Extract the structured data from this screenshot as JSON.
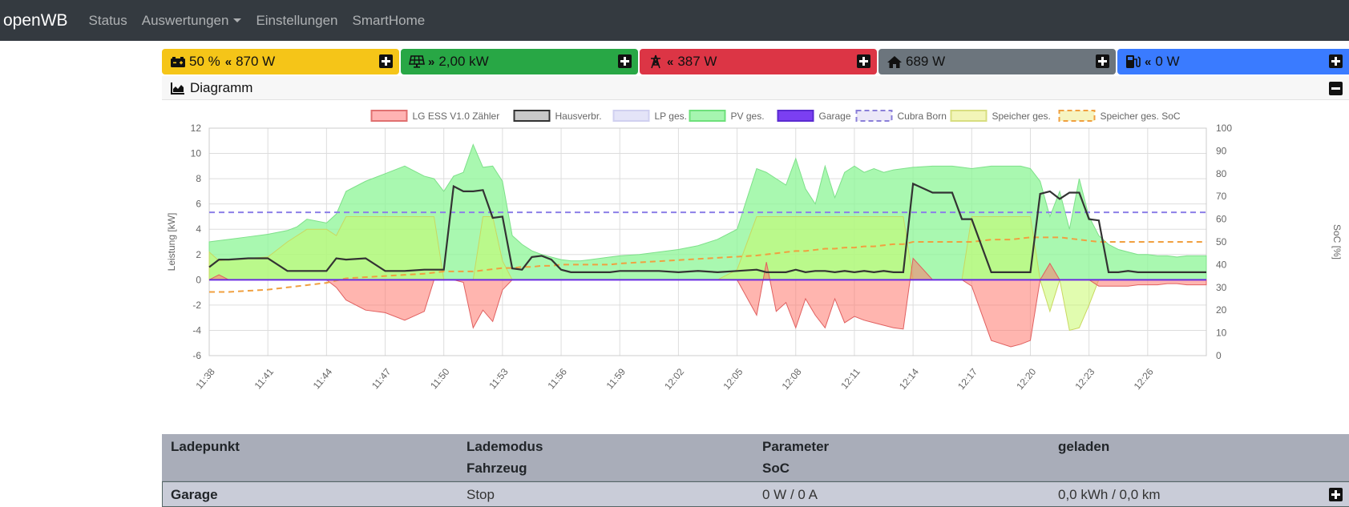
{
  "navbar": {
    "brand": "openWB",
    "items": [
      "Status",
      "Auswertungen",
      "Einstellungen",
      "SmartHome"
    ]
  },
  "tiles": [
    {
      "icon": "battery-icon",
      "arrows": "«",
      "prefix": "50 %",
      "value": "870 W",
      "color": "#f5c518"
    },
    {
      "icon": "solar-panel-icon",
      "arrows": "»",
      "prefix": "",
      "value": "2,00 kW",
      "color": "#28a745"
    },
    {
      "icon": "power-tower-icon",
      "arrows": "«",
      "prefix": "",
      "value": "387 W",
      "color": "#dc3545"
    },
    {
      "icon": "home-icon",
      "arrows": "",
      "prefix": "",
      "value": "689 W",
      "color": "#6c757d"
    },
    {
      "icon": "charging-station-icon",
      "arrows": "«",
      "prefix": "",
      "value": "0 W",
      "color": "#3a7bff"
    }
  ],
  "diagram": {
    "title": "Diagramm"
  },
  "chart_data": {
    "type": "area",
    "xlabel": "",
    "ylabel": "Leistung [kW]",
    "y2label": "SoC [%]",
    "ylim": [
      -6,
      12
    ],
    "y2lim": [
      0,
      100
    ],
    "yticks": [
      "12",
      "10",
      "8",
      "6",
      "4",
      "2",
      "0",
      "-2",
      "-4",
      "-6"
    ],
    "y2ticks": [
      "100",
      "90",
      "80",
      "70",
      "60",
      "50",
      "40",
      "30",
      "20",
      "10",
      "0"
    ],
    "xticks": [
      "11:38",
      "11:41",
      "11:44",
      "11:47",
      "11:50",
      "11:53",
      "11:56",
      "11:59",
      "12:02",
      "12:05",
      "12:08",
      "12:11",
      "12:14",
      "12:17",
      "12:20",
      "12:23",
      "12:26"
    ],
    "legend_position": "top",
    "legend": [
      {
        "label": "LG ESS V1.0 Zähler",
        "fill": "#ffb3b3",
        "stroke": "#e07070",
        "dashed": false
      },
      {
        "label": "Hausverbr.",
        "fill": "#c8c8c8",
        "stroke": "#333333",
        "dashed": false
      },
      {
        "label": "LP ges.",
        "fill": "#e4e4f8",
        "stroke": "#d0d0f0",
        "dashed": false
      },
      {
        "label": "PV ges.",
        "fill": "#a6f5b0",
        "stroke": "#6de07a",
        "dashed": false
      },
      {
        "label": "Garage",
        "fill": "#7b3ff2",
        "stroke": "#5a2bd0",
        "dashed": false
      },
      {
        "label": "Cubra Born",
        "fill": "#ece8f8",
        "stroke": "#8a7fd8",
        "dashed": true
      },
      {
        "label": "Speicher ges.",
        "fill": "#f2f5b8",
        "stroke": "#d8de80",
        "dashed": false
      },
      {
        "label": "Speicher ges. SoC",
        "fill": "#f6f4c0",
        "stroke": "#f0a040",
        "dashed": true
      }
    ],
    "x_minutes": [
      0,
      0.5,
      1,
      2,
      3,
      4,
      4.5,
      5,
      6,
      6.5,
      7,
      8,
      9,
      10,
      11,
      11.5,
      12,
      12.5,
      13,
      13.5,
      14,
      14.5,
      15,
      15.5,
      16,
      16.5,
      17,
      17.5,
      18,
      18.5,
      19,
      19.5,
      20,
      20.5,
      21,
      22,
      23,
      24,
      25,
      26,
      27,
      28,
      28.5,
      29,
      29.5,
      30,
      30.5,
      31,
      31.5,
      32,
      32.5,
      33,
      33.5,
      34,
      34.5,
      35,
      35.5,
      36,
      37,
      38,
      38.5,
      39,
      40,
      41,
      41.5,
      42,
      42.5,
      43,
      43.5,
      44,
      44.5,
      45,
      45.5,
      46,
      46.5,
      47,
      47.5,
      48,
      48.5,
      49,
      49.5,
      50,
      51
    ],
    "series": [
      {
        "name": "PV ges.",
        "unit": "kW",
        "values": [
          3.0,
          3.1,
          3.2,
          3.4,
          3.6,
          3.9,
          4.2,
          4.8,
          4.5,
          5.2,
          7.0,
          7.8,
          8.4,
          9.0,
          8.2,
          8.0,
          7.0,
          8.2,
          8.5,
          10.7,
          8.9,
          9.0,
          7.8,
          3.5,
          2.8,
          2.3,
          2.0,
          1.8,
          1.6,
          1.5,
          1.5,
          1.6,
          1.7,
          1.8,
          1.9,
          2.0,
          2.2,
          2.4,
          2.7,
          3.2,
          4.0,
          8.8,
          8.5,
          8.0,
          7.5,
          9.6,
          7.2,
          6.0,
          9.0,
          6.5,
          8.5,
          9.0,
          8.5,
          8.8,
          8.5,
          8.7,
          8.8,
          8.9,
          9.0,
          9.0,
          8.9,
          8.8,
          9.0,
          9.0,
          9.0,
          8.8,
          7.8,
          5.0,
          7.0,
          4.0,
          8.0,
          5.0,
          3.5,
          2.8,
          2.4,
          2.2,
          2.0,
          2.0,
          1.9,
          1.9,
          1.8,
          1.9,
          1.9
        ]
      },
      {
        "name": "Hausverbr.",
        "unit": "kW",
        "values": [
          1.0,
          1.6,
          1.6,
          1.7,
          1.7,
          0.7,
          0.7,
          0.7,
          0.7,
          1.7,
          1.6,
          1.7,
          0.7,
          0.7,
          0.8,
          0.8,
          0.8,
          7.4,
          7.0,
          7.0,
          7.1,
          4.9,
          5.0,
          0.9,
          0.8,
          1.8,
          1.9,
          1.6,
          0.8,
          0.6,
          0.6,
          0.6,
          0.6,
          0.6,
          0.7,
          0.7,
          0.7,
          0.6,
          0.7,
          0.6,
          0.7,
          0.8,
          0.6,
          0.6,
          0.6,
          0.8,
          0.6,
          0.7,
          0.7,
          0.6,
          0.7,
          0.6,
          0.7,
          0.6,
          0.7,
          0.6,
          0.6,
          7.6,
          6.9,
          6.9,
          4.8,
          4.8,
          0.6,
          0.6,
          0.6,
          0.6,
          6.8,
          7.0,
          6.4,
          6.9,
          6.9,
          4.8,
          4.7,
          0.6,
          0.6,
          0.7,
          0.6,
          0.6,
          0.6,
          0.6,
          0.6,
          0.6,
          0.6
        ]
      },
      {
        "name": "LG ESS V1.0 Zähler",
        "unit": "kW",
        "values": [
          0.0,
          0.4,
          0.0,
          0.0,
          0.0,
          0.0,
          0.0,
          0.0,
          0.0,
          -0.6,
          -1.6,
          -2.4,
          -2.6,
          -3.2,
          -2.5,
          0.0,
          0.0,
          0.0,
          -0.2,
          -3.8,
          -2.4,
          -3.3,
          -0.8,
          0.0,
          0.0,
          0.0,
          0.0,
          0.0,
          0.0,
          0.0,
          0.0,
          0.0,
          0.0,
          0.0,
          0.0,
          0.0,
          0.0,
          0.0,
          0.0,
          0.0,
          0.0,
          -2.8,
          1.4,
          -2.5,
          -1.8,
          -3.8,
          -1.5,
          -2.8,
          -3.8,
          -1.5,
          -3.4,
          -2.9,
          -3.2,
          -3.4,
          -3.6,
          -3.8,
          -3.9,
          1.7,
          0.0,
          0.0,
          0.0,
          -0.5,
          -4.8,
          -5.3,
          -5.1,
          -4.8,
          0.0,
          1.3,
          0.0,
          0.0,
          0.0,
          0.0,
          -0.5,
          -0.5,
          -0.5,
          -0.5,
          -0.4,
          -0.4,
          -0.4,
          -0.3,
          -0.3,
          -0.4,
          -0.4
        ]
      },
      {
        "name": "Speicher ges.",
        "unit": "kW",
        "values": [
          2.2,
          1.5,
          1.6,
          1.7,
          1.8,
          3.0,
          3.5,
          4.0,
          4.0,
          3.5,
          5.0,
          5.0,
          5.0,
          5.0,
          5.0,
          5.0,
          0.0,
          0.0,
          0.0,
          0.0,
          5.0,
          5.0,
          1.5,
          0.0,
          0.0,
          0.0,
          0.0,
          0.0,
          0.0,
          0.0,
          0.0,
          0.0,
          0.0,
          0.0,
          0.0,
          0.0,
          0.0,
          0.0,
          0.0,
          0.0,
          0.8,
          5.0,
          5.0,
          5.0,
          5.0,
          5.0,
          5.0,
          5.0,
          5.0,
          5.0,
          5.0,
          5.0,
          5.0,
          5.0,
          5.0,
          5.0,
          5.0,
          0.0,
          0.0,
          0.0,
          0.0,
          5.0,
          5.0,
          5.0,
          5.0,
          5.0,
          0.0,
          -2.5,
          0.0,
          -4.0,
          -3.8,
          -2.0,
          0.0,
          0.0,
          0.0,
          0.0,
          0.0,
          0.0,
          0.0,
          0.0,
          0.0,
          0.0,
          0.0
        ]
      },
      {
        "name": "Speicher ges. SoC",
        "unit": "%",
        "axis": "right",
        "values": [
          28,
          28,
          28,
          28.5,
          29,
          30,
          30.5,
          31,
          32,
          33,
          34,
          34.5,
          35,
          35.5,
          36,
          36.5,
          37,
          37,
          37,
          37,
          37.5,
          38,
          38.5,
          38.5,
          39,
          39,
          39.5,
          39.5,
          40,
          40,
          40,
          40,
          40,
          40,
          40.5,
          41,
          41.5,
          42,
          42.5,
          43,
          43.5,
          44,
          44.5,
          45,
          45.5,
          46,
          46,
          46.5,
          47,
          47,
          47.5,
          47.5,
          48,
          48,
          48.5,
          49,
          49,
          50,
          50,
          50,
          50,
          50,
          51,
          51,
          51.5,
          52,
          52,
          52,
          52,
          51.5,
          51,
          50.5,
          50,
          50,
          50,
          50,
          50,
          50,
          50,
          50,
          50,
          50,
          50
        ]
      },
      {
        "name": "Cubra Born",
        "unit": "%",
        "axis": "right",
        "values": [
          63,
          63,
          63,
          63,
          63,
          63,
          63,
          63,
          63,
          63,
          63,
          63,
          63,
          63,
          63,
          63,
          63,
          63,
          63,
          63,
          63,
          63,
          63,
          63,
          63,
          63,
          63,
          63,
          63,
          63,
          63,
          63,
          63,
          63,
          63,
          63,
          63,
          63,
          63,
          63,
          63,
          63,
          63,
          63,
          63,
          63,
          63,
          63,
          63,
          63,
          63,
          63,
          63,
          63,
          63,
          63,
          63,
          63,
          63,
          63,
          63,
          63,
          63,
          63,
          63,
          63,
          63,
          63,
          63,
          63,
          63,
          63,
          63,
          63,
          63,
          63,
          63,
          63,
          63,
          63,
          63,
          63,
          63
        ]
      },
      {
        "name": "Garage",
        "unit": "kW",
        "values": [
          0,
          0,
          0,
          0,
          0,
          0,
          0,
          0,
          0,
          0,
          0,
          0,
          0,
          0,
          0,
          0,
          0,
          0,
          0,
          0,
          0,
          0,
          0,
          0,
          0,
          0,
          0,
          0,
          0,
          0,
          0,
          0,
          0,
          0,
          0,
          0,
          0,
          0,
          0,
          0,
          0,
          0,
          0,
          0,
          0,
          0,
          0,
          0,
          0,
          0,
          0,
          0,
          0,
          0,
          0,
          0,
          0,
          0,
          0,
          0,
          0,
          0,
          0,
          0,
          0,
          0,
          0,
          0,
          0,
          0,
          0,
          0,
          0,
          0,
          0,
          0,
          0,
          0,
          0,
          0,
          0,
          0,
          0
        ]
      }
    ]
  },
  "table": {
    "headers": {
      "col1": "Ladepunkt",
      "col2a": "Lademodus",
      "col2b": "Fahrzeug",
      "col3a": "Parameter",
      "col3b": "SoC",
      "col4": "geladen"
    },
    "rows": [
      {
        "name": "Garage",
        "mode": "Stop",
        "param": "0 W / 0 A",
        "charged": "0,0 kWh / 0,0 km"
      }
    ]
  }
}
